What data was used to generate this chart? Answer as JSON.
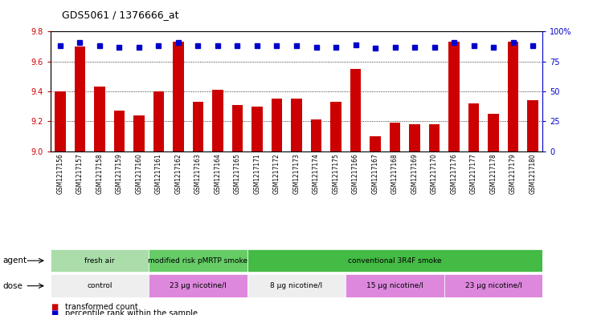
{
  "title": "GDS5061 / 1376666_at",
  "samples": [
    "GSM1217156",
    "GSM1217157",
    "GSM1217158",
    "GSM1217159",
    "GSM1217160",
    "GSM1217161",
    "GSM1217162",
    "GSM1217163",
    "GSM1217164",
    "GSM1217165",
    "GSM1217171",
    "GSM1217172",
    "GSM1217173",
    "GSM1217174",
    "GSM1217175",
    "GSM1217166",
    "GSM1217167",
    "GSM1217168",
    "GSM1217169",
    "GSM1217170",
    "GSM1217176",
    "GSM1217177",
    "GSM1217178",
    "GSM1217179",
    "GSM1217180"
  ],
  "bar_values": [
    9.4,
    9.7,
    9.43,
    9.27,
    9.24,
    9.4,
    9.73,
    9.33,
    9.41,
    9.31,
    9.3,
    9.35,
    9.35,
    9.21,
    9.33,
    9.55,
    9.1,
    9.19,
    9.18,
    9.18,
    9.73,
    9.32,
    9.25,
    9.73,
    9.34
  ],
  "percentile_values": [
    88,
    91,
    88,
    87,
    87,
    88,
    91,
    88,
    88,
    88,
    88,
    88,
    88,
    87,
    87,
    89,
    86,
    87,
    87,
    87,
    91,
    88,
    87,
    91,
    88
  ],
  "ylim": [
    9.0,
    9.8
  ],
  "yticks": [
    9.0,
    9.2,
    9.4,
    9.6,
    9.8
  ],
  "right_yticks": [
    0,
    25,
    50,
    75,
    100
  ],
  "right_yticklabels": [
    "0",
    "25",
    "50",
    "75",
    "100%"
  ],
  "bar_color": "#cc0000",
  "dot_color": "#0000cc",
  "agent_groups": [
    {
      "label": "fresh air",
      "start": 0,
      "end": 5,
      "color": "#aaddaa"
    },
    {
      "label": "modified risk pMRTP smoke",
      "start": 5,
      "end": 10,
      "color": "#66cc66"
    },
    {
      "label": "conventional 3R4F smoke",
      "start": 10,
      "end": 25,
      "color": "#44bb44"
    }
  ],
  "dose_groups": [
    {
      "label": "control",
      "start": 0,
      "end": 5,
      "color": "#eeeeee"
    },
    {
      "label": "23 μg nicotine/l",
      "start": 5,
      "end": 10,
      "color": "#dd88dd"
    },
    {
      "label": "8 μg nicotine/l",
      "start": 10,
      "end": 15,
      "color": "#eeeeee"
    },
    {
      "label": "15 μg nicotine/l",
      "start": 15,
      "end": 20,
      "color": "#dd88dd"
    },
    {
      "label": "23 μg nicotine/l",
      "start": 20,
      "end": 25,
      "color": "#dd88dd"
    }
  ]
}
